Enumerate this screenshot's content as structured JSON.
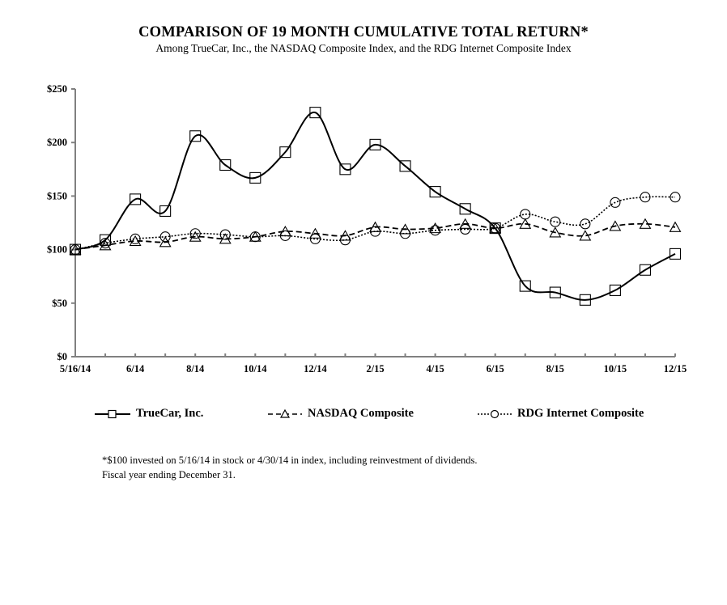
{
  "chart_data": {
    "type": "line",
    "title": "COMPARISON OF 19 MONTH CUMULATIVE  TOTAL RETURN*",
    "subtitle": "Among TrueCar, Inc., the NASDAQ Composite  Index, and the RDG Internet Composite  Index",
    "xlabel": "",
    "ylabel": "",
    "ylim": [
      0,
      250
    ],
    "y_ticks": [
      0,
      50,
      100,
      150,
      200,
      250
    ],
    "y_tick_labels": [
      "$0",
      "$50",
      "$100",
      "$150",
      "$200",
      "$250"
    ],
    "x": [
      "5/16/14",
      "5/14",
      "6/14",
      "7/14",
      "8/14",
      "9/14",
      "10/14",
      "11/14",
      "12/14",
      "1/15",
      "2/15",
      "3/15",
      "4/15",
      "5/15",
      "6/15",
      "7/15",
      "8/15",
      "9/15",
      "10/15",
      "11/15",
      "12/15"
    ],
    "x_tick_labels": [
      "5/16/14",
      "",
      "6/14",
      "",
      "8/14",
      "",
      "10/14",
      "",
      "12/14",
      "",
      "2/15",
      "",
      "4/15",
      "",
      "6/15",
      "",
      "8/15",
      "",
      "10/15",
      "",
      "12/15"
    ],
    "grid": false,
    "legend_position": "bottom",
    "series": [
      {
        "name": "TrueCar, Inc.",
        "style": "solid",
        "marker": "square",
        "smooth": true,
        "values": [
          100,
          109,
          147,
          136,
          206,
          179,
          167,
          191,
          228,
          175,
          198,
          178,
          154,
          138,
          120,
          66,
          60,
          53,
          62,
          81,
          96
        ]
      },
      {
        "name": "NASDAQ Composite",
        "style": "dashed",
        "marker": "triangle",
        "smooth": true,
        "values": [
          100,
          104,
          108,
          107,
          112,
          110,
          112,
          117,
          115,
          113,
          121,
          119,
          120,
          124,
          120,
          124,
          116,
          113,
          122,
          124,
          121
        ]
      },
      {
        "name": "RDG Internet Composite",
        "style": "dotted",
        "marker": "circle",
        "smooth": true,
        "values": [
          100,
          106,
          110,
          112,
          115,
          114,
          112,
          113,
          110,
          109,
          117,
          115,
          118,
          119,
          120,
          133,
          126,
          124,
          144,
          149,
          149
        ]
      }
    ]
  },
  "footnote": {
    "line1": "*$100  invested on 5/16/14  in stock or 4/30/14  in index, including reinvestment of dividends.",
    "line2": "Fiscal year ending December  31."
  },
  "colors": {
    "axis": "#808080",
    "series": "#000000"
  }
}
